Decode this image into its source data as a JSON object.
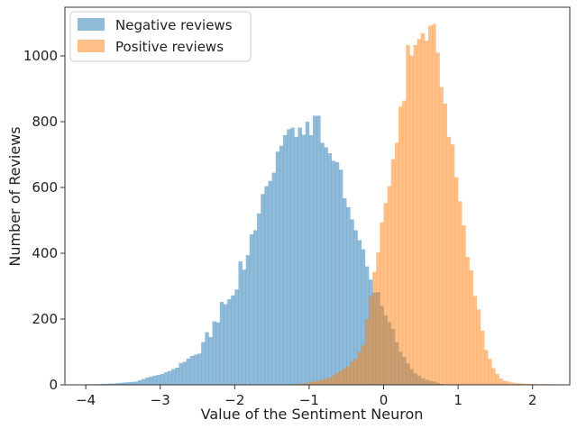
{
  "chart_data": {
    "type": "bar",
    "subtype": "overlapping histogram",
    "title": "",
    "xlabel": "Value of the Sentiment Neuron",
    "ylabel": "Number of Reviews",
    "xlim": [
      -4.28,
      2.5
    ],
    "ylim": [
      0,
      1148
    ],
    "xticks": [
      -4,
      -3,
      -2,
      -1,
      0,
      1,
      2
    ],
    "yticks": [
      0,
      200,
      400,
      600,
      800,
      1000
    ],
    "grid": false,
    "legend": "top-left",
    "bin_width": 0.05,
    "series": [
      {
        "name": "Negative reviews",
        "color": "#1f77b4",
        "opacity": 0.5,
        "bin_start": -4.0,
        "values": [
          2,
          1,
          2,
          2,
          3,
          3,
          4,
          4,
          5,
          6,
          7,
          8,
          9,
          10,
          14,
          18,
          22,
          25,
          28,
          30,
          33,
          38,
          42,
          48,
          52,
          66,
          70,
          80,
          88,
          92,
          95,
          130,
          160,
          145,
          193,
          190,
          252,
          245,
          260,
          272,
          290,
          375,
          350,
          394,
          458,
          470,
          521,
          580,
          604,
          620,
          645,
          709,
          727,
          759,
          777,
          782,
          754,
          782,
          760,
          800,
          759,
          818,
          818,
          736,
          722,
          704,
          681,
          677,
          654,
          567,
          540,
          503,
          470,
          440,
          412,
          360,
          320,
          280,
          282,
          240,
          211,
          190,
          170,
          130,
          101,
          85,
          65,
          48,
          35,
          28,
          20,
          15,
          12,
          10,
          6,
          3
        ]
      },
      {
        "name": "Positive reviews",
        "color": "#ff7f0e",
        "opacity": 0.5,
        "bin_start": -1.2,
        "values": [
          2,
          3,
          4,
          6,
          8,
          10,
          12,
          15,
          18,
          22,
          28,
          35,
          42,
          50,
          56,
          70,
          79,
          100,
          120,
          200,
          270,
          343,
          403,
          494,
          553,
          604,
          686,
          736,
          846,
          864,
          1033,
          1001,
          1033,
          1051,
          1069,
          1046,
          1092,
          1097,
          1010,
          905,
          855,
          754,
          731,
          631,
          558,
          485,
          389,
          348,
          270,
          229,
          165,
          106,
          79,
          51,
          33,
          19,
          12,
          10,
          7,
          5,
          5,
          4,
          3,
          3,
          3,
          2,
          2,
          2,
          2,
          1
        ]
      }
    ]
  }
}
